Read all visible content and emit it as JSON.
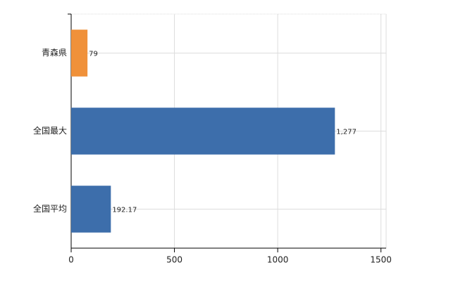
{
  "chart_data": {
    "type": "bar",
    "orientation": "horizontal",
    "categories": [
      "青森県",
      "全国最大",
      "全国平均"
    ],
    "values": [
      79,
      1277,
      192.17
    ],
    "value_labels": [
      "79",
      "1,277",
      "192.17"
    ],
    "colors": [
      "#f0913a",
      "#3d6eab",
      "#3d6eab"
    ],
    "xlim": [
      0,
      1525
    ],
    "xticks": [
      0,
      500,
      1000,
      1500
    ],
    "grid": true
  }
}
